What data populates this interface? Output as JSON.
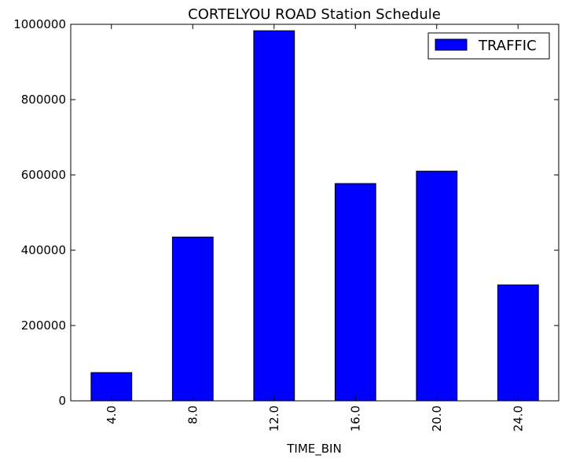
{
  "chart_data": {
    "type": "bar",
    "title": "CORTELYOU ROAD Station Schedule",
    "xlabel": "TIME_BIN",
    "ylabel": "",
    "categories": [
      "4.0",
      "8.0",
      "12.0",
      "16.0",
      "20.0",
      "24.0"
    ],
    "series": [
      {
        "name": "TRAFFIC",
        "values": [
          75000,
          435000,
          983000,
          577000,
          610000,
          308000
        ]
      }
    ],
    "ylim": [
      0,
      1000000
    ],
    "yticks": [
      0,
      200000,
      400000,
      600000,
      800000,
      1000000
    ],
    "ytick_labels": [
      "0",
      "200000",
      "400000",
      "600000",
      "800000",
      "1000000"
    ],
    "legend_position": "top-right",
    "grid": false,
    "colors": {
      "bar": "#0000ff",
      "edge": "#000000",
      "axes": "#000000"
    }
  }
}
